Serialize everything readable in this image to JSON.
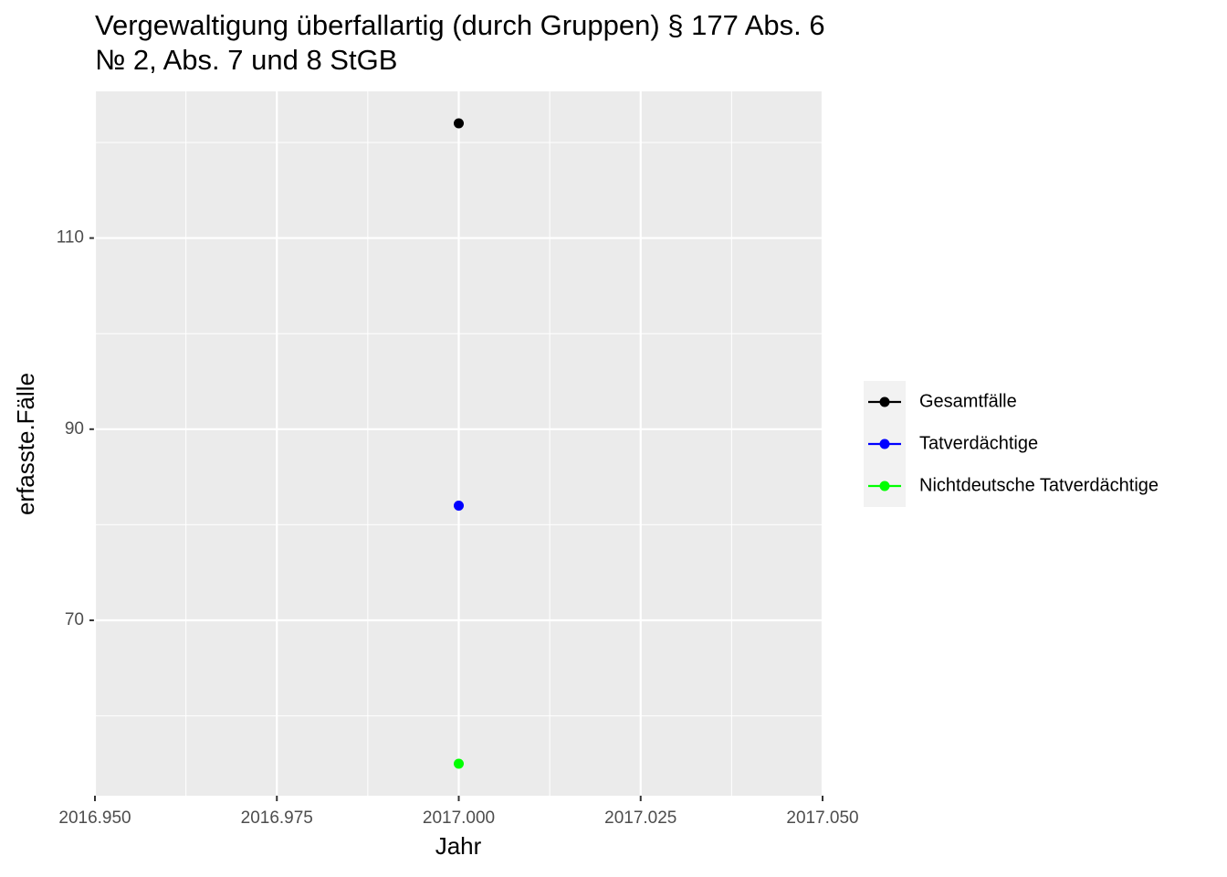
{
  "chart_data": {
    "type": "line",
    "title": [
      "Vergewaltigung überfallartig (durch Gruppen) § 177 Abs. 6",
      "№ 2, Abs. 7 und 8 StGB"
    ],
    "x_label": "Jahr",
    "y_label": "erfasste.Fälle",
    "x": [
      2017
    ],
    "series": [
      {
        "name": "Gesamtfälle",
        "color": "#000000",
        "values": [
          122
        ]
      },
      {
        "name": "Tatverdächtige",
        "color": "#0000ff",
        "values": [
          82
        ]
      },
      {
        "name": "Nichtdeutsche Tatverdächtige",
        "color": "#00ff00",
        "values": [
          55
        ]
      }
    ],
    "xlim": [
      2016.95,
      2017.05
    ],
    "xticks": [
      {
        "value": 2016.95,
        "label": "2016.950"
      },
      {
        "value": 2016.975,
        "label": "2016.975"
      },
      {
        "value": 2017.0,
        "label": "2017.000"
      },
      {
        "value": 2017.025,
        "label": "2017.025"
      },
      {
        "value": 2017.05,
        "label": "2017.050"
      }
    ],
    "ylim": [
      51.65,
      125.35
    ],
    "yticks": [
      70,
      90,
      110
    ],
    "grid": true,
    "legend": "right"
  }
}
